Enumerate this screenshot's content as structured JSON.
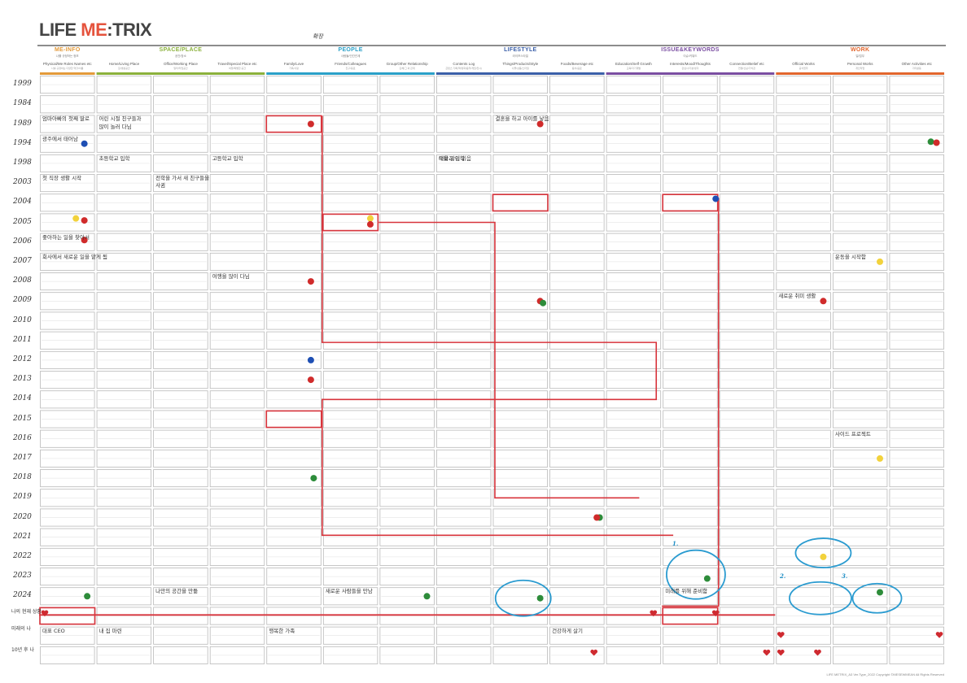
{
  "brand": {
    "logo_left": "LIFE ",
    "logo_accent": "ME",
    "logo_right": ":TRIX",
    "top_note": "확장"
  },
  "categories": [
    {
      "label": "ME-INFO",
      "sub": "나를 규정하는 정보",
      "color": "#e39a3a"
    },
    {
      "label": "SPACE/PLACE",
      "sub": "공간/장소",
      "color": "#8bb13c"
    },
    {
      "label": "PEOPLE",
      "sub": "사람들/인간관계",
      "color": "#2aa0c8"
    },
    {
      "label": "LIFESTYLE",
      "sub": "라이프스타일",
      "color": "#3b5fa8"
    },
    {
      "label": "ISSUE&KEYWORDS",
      "sub": "이슈/키워드",
      "color": "#7a4ea1"
    },
    {
      "label": "WORK",
      "sub": "일/업무",
      "color": "#e2662d"
    }
  ],
  "columns": [
    {
      "label": "Physical/Me Roles Names etc",
      "sub": "나를 규정하는 다양한 역할/이름"
    },
    {
      "label": "Home/Living Place",
      "sub": "집/생활공간"
    },
    {
      "label": "Office/Working Place",
      "sub": "일터/작업공간"
    },
    {
      "label": "Travel/Special Place etc",
      "sub": "여행/특별한 공간"
    },
    {
      "label": "Family/Love",
      "sub": "가족/사랑"
    },
    {
      "label": "Friends/Colleagues",
      "sub": "친구/동료"
    },
    {
      "label": "Group/Other Relationship",
      "sub": "단체/그 외 관계"
    },
    {
      "label": "Contents Log",
      "sub": "콘텐츠 기록(책/영화/음악/게임/전시)"
    },
    {
      "label": "Things/Products/Style",
      "sub": "사물/상품/스타일"
    },
    {
      "label": "Foods/Beverage etc",
      "sub": "음식/음료"
    },
    {
      "label": "Education/Self Growth",
      "sub": "교육/자기계발"
    },
    {
      "label": "Interests/Mood/Thoughts",
      "sub": "관심사/기분/생각"
    },
    {
      "label": "Connection/Belief etc",
      "sub": "연결/신념/가치관"
    },
    {
      "label": "Official Works",
      "sub": "공식업무"
    },
    {
      "label": "Personal Works",
      "sub": "개인작업"
    },
    {
      "label": "Other Activities etc",
      "sub": "기타활동"
    }
  ],
  "years": [
    "1999",
    "1984",
    "1989",
    "1994",
    "1998",
    "2003",
    "2004",
    "2005",
    "2006",
    "2007",
    "2008",
    "2009",
    "2010",
    "2011",
    "2012",
    "2013",
    "2014",
    "2015",
    "2016",
    "2017",
    "2018",
    "2019",
    "2020",
    "2021",
    "2022",
    "2023",
    "2024"
  ],
  "side_labels": [
    "나의 현재 상황",
    "미래의 나",
    "10년 후 나"
  ],
  "circle_numbers": [
    "1.",
    "2.",
    "3."
  ],
  "notes": [
    "엄마아빠의 첫째 딸로",
    "광주에서 태어남",
    "어린 시절 친구들과",
    "많이 놀러 다님",
    "초등학교 입학",
    "전학을 가서 새 친구들을",
    "사귐",
    "고등학교 입학",
    "대학교 입학",
    "첫 직장 생활 시작",
    "좋아하는 일을 찾아서",
    "결혼을 하고 아이를 낳음",
    "회사에서 새로운 일을 맡게 됨",
    "새로운 취미 생활",
    "운동을 시작함",
    "여행을 많이 다님",
    "책을 많이 읽음",
    "나만의 공간을 만듦",
    "사이드 프로젝트",
    "새로운 사람들을 만남",
    "미래를 위해 준비함",
    "대표 CEO",
    "내 집 마련",
    "건강하게 살기",
    "행복한 가족"
  ],
  "footer": "LIFE METRIX_A3 Ver.Type_2022 Copyright ©MESEWMEAN All Rights Reserved"
}
